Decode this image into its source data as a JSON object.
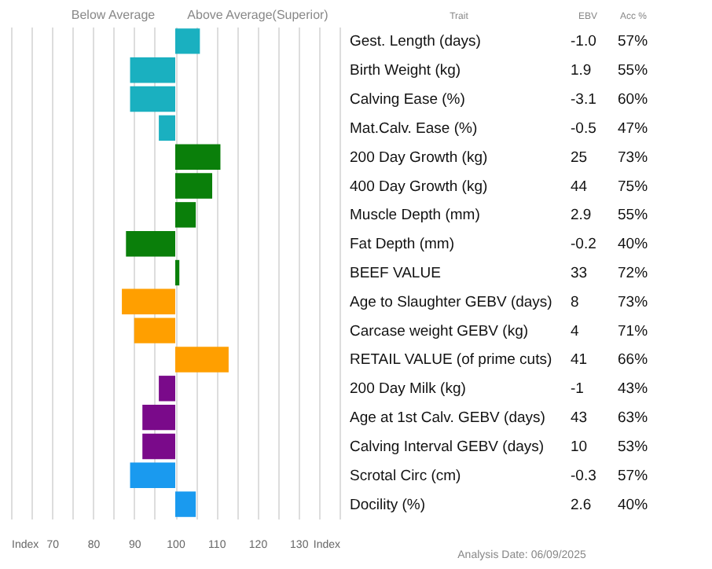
{
  "chart_data": {
    "type": "bar",
    "orientation": "horizontal",
    "categories": [
      "Gest. Length (days)",
      "Birth Weight (kg)",
      "Calving Ease (%)",
      "Mat.Calv. Ease (%)",
      "200 Day Growth (kg)",
      "400 Day Growth (kg)",
      "Muscle Depth (mm)",
      "Fat Depth (mm)",
      "BEEF VALUE",
      "Age to Slaughter GEBV (days)",
      "Carcase weight GEBV (kg)",
      "RETAIL VALUE (of prime cuts)",
      "200 Day Milk (kg)",
      "Age at 1st Calv. GEBV (days)",
      "Calving Interval GEBV (days)",
      "Scrotal Circ (cm)",
      "Docility (%)"
    ],
    "base": [
      100,
      100,
      100,
      100,
      100,
      100,
      100,
      100,
      100,
      100,
      100,
      100,
      100,
      100,
      100,
      100,
      100
    ],
    "values": [
      6,
      -11,
      -11,
      -4,
      11,
      9,
      5,
      -12,
      1,
      -13,
      -10,
      13,
      -4,
      -8,
      -8,
      -11,
      5
    ],
    "colors": [
      "#1ab0c0",
      "#1ab0c0",
      "#1ab0c0",
      "#1ab0c0",
      "#0a7f0a",
      "#0a7f0a",
      "#0a7f0a",
      "#0a7f0a",
      "#0a7f0a",
      "#ff9f00",
      "#ff9f00",
      "#ff9f00",
      "#7a0a8a",
      "#7a0a8a",
      "#7a0a8a",
      "#1a9aef",
      "#1a9aef"
    ],
    "xlim": [
      60,
      140
    ],
    "xticks": [
      {
        "value": 60,
        "label": "Index"
      },
      {
        "value": 65,
        "label": null
      },
      70,
      {
        "value": 75,
        "label": null
      },
      80,
      {
        "value": 85,
        "label": null
      },
      90,
      {
        "value": 95,
        "label": null
      },
      100,
      {
        "value": 105,
        "label": null
      },
      110,
      {
        "value": 115,
        "label": null
      },
      120,
      {
        "value": 125,
        "label": null
      },
      130,
      {
        "value": 135,
        "label": null
      },
      {
        "value": 140,
        "label": "Index"
      }
    ],
    "grid": "x",
    "annotations": [
      "Below Average",
      "Above Average(Superior)",
      "Trait",
      "EBV",
      "Acc %",
      "Analysis Date: 06/09/2025",
      "-1.0",
      "57%",
      "1.9",
      "55%",
      "-3.1",
      "60%",
      "-0.5",
      "47%",
      "25",
      "73%",
      "44",
      "75%",
      "2.9",
      "55%",
      "-0.2",
      "40%",
      "33",
      "72%",
      "8",
      "73%",
      "4",
      "71%",
      "41",
      "66%",
      "-1",
      "43%",
      "43",
      "63%",
      "10",
      "53%",
      "-0.3",
      "57%",
      "2.6",
      "40%"
    ]
  }
}
